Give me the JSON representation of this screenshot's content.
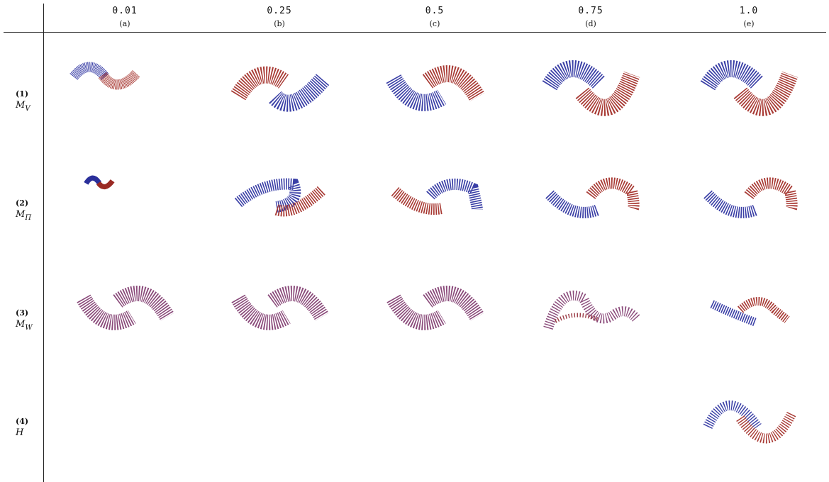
{
  "columns": [
    {
      "value": "0.01",
      "letter": "(a)"
    },
    {
      "value": "0.25",
      "letter": "(b)"
    },
    {
      "value": "0.5",
      "letter": "(c)"
    },
    {
      "value": "0.75",
      "letter": "(d)"
    },
    {
      "value": "1.0",
      "letter": "(e)"
    }
  ],
  "rows": [
    {
      "number": "(1)",
      "symbol_base": "M",
      "symbol_sub": "V"
    },
    {
      "number": "(2)",
      "symbol_base": "M",
      "symbol_sub": "Π"
    },
    {
      "number": "(3)",
      "symbol_base": "M",
      "symbol_sub": "W"
    },
    {
      "number": "(4)",
      "symbol_base": "H",
      "symbol_sub": ""
    }
  ],
  "colors": {
    "class_a": "#3a3fa6",
    "class_b": "#a83a34",
    "mixed": "#8a4a7a"
  },
  "panels": [
    {
      "row": 1,
      "col": "a",
      "icon": "two-moons-scatter-small-dense"
    },
    {
      "row": 1,
      "col": "b",
      "icon": "two-moons-scatter-red-left"
    },
    {
      "row": 1,
      "col": "c",
      "icon": "two-moons-scatter-blue-left"
    },
    {
      "row": 1,
      "col": "d",
      "icon": "two-moons-scatter-blue-left"
    },
    {
      "row": 1,
      "col": "e",
      "icon": "two-moons-scatter-blue-left"
    },
    {
      "row": 2,
      "col": "a",
      "icon": "two-moons-scatter-tiny"
    },
    {
      "row": 2,
      "col": "b",
      "icon": "two-moons-scatter-blue-left-up"
    },
    {
      "row": 2,
      "col": "c",
      "icon": "two-moons-scatter-red-left-up"
    },
    {
      "row": 2,
      "col": "d",
      "icon": "two-moons-scatter-blue-left-up"
    },
    {
      "row": 2,
      "col": "e",
      "icon": "two-moons-scatter-blue-left-up"
    },
    {
      "row": 3,
      "col": "a",
      "icon": "two-moons-scatter-mixed"
    },
    {
      "row": 3,
      "col": "b",
      "icon": "two-moons-scatter-mixed"
    },
    {
      "row": 3,
      "col": "c",
      "icon": "two-moons-scatter-mixed"
    },
    {
      "row": 3,
      "col": "d",
      "icon": "two-moons-scatter-mixed-noisy"
    },
    {
      "row": 3,
      "col": "e",
      "icon": "two-moons-scatter-thin"
    },
    {
      "row": 4,
      "col": "e",
      "icon": "two-moons-scatter-ground-truth"
    }
  ]
}
